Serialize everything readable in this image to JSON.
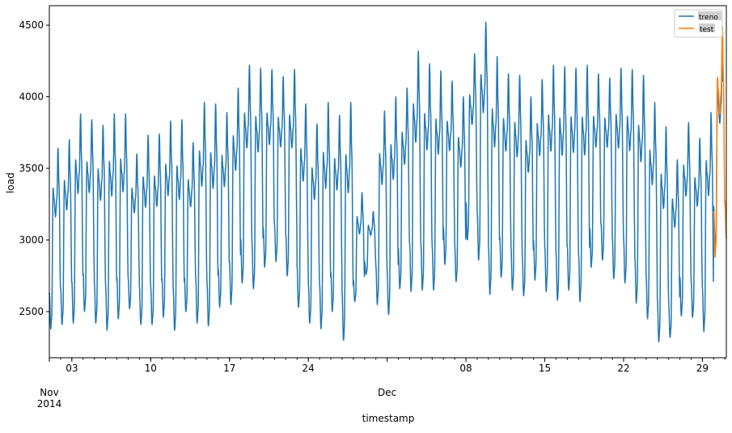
{
  "chart_data": {
    "type": "line",
    "xlabel": "timestamp",
    "ylabel": "load",
    "ylim": [
      2178,
      4636
    ],
    "xlim": [
      "2014-11-01 00:00",
      "2014-12-31 03:00"
    ],
    "grid": false,
    "legend_placement": "upper-right",
    "yticks": [
      2500,
      3000,
      3500,
      4000,
      4500
    ],
    "xticks_major": [
      {
        "date": "2014-11-01",
        "label": "Nov",
        "sublabel": "2014"
      },
      {
        "date": "2014-11-03",
        "label": "03"
      },
      {
        "date": "2014-11-10",
        "label": "10"
      },
      {
        "date": "2014-11-17",
        "label": "17"
      },
      {
        "date": "2014-11-24",
        "label": "24"
      },
      {
        "date": "2014-12-01",
        "label": "Dec"
      },
      {
        "date": "2014-12-08",
        "label": "08"
      },
      {
        "date": "2014-12-15",
        "label": "15"
      },
      {
        "date": "2014-12-22",
        "label": "22"
      },
      {
        "date": "2014-12-29",
        "label": "29"
      }
    ],
    "series": [
      {
        "name": "treno",
        "color": "#1f77b4",
        "start_date": "2014-11-01",
        "daily_max": [
          3640,
          3700,
          3880,
          3840,
          3800,
          3880,
          3880,
          3600,
          3730,
          3740,
          3830,
          3840,
          3680,
          3960,
          3950,
          3890,
          4060,
          4220,
          4200,
          4190,
          4140,
          4190,
          3950,
          3810,
          3960,
          3870,
          3960,
          3330,
          3200,
          3900,
          4000,
          4060,
          4320,
          4230,
          4180,
          4110,
          4000,
          4300,
          4520,
          4280,
          4160,
          4150,
          4000,
          4120,
          4220,
          4210,
          4200,
          4220,
          4160,
          4130,
          4200,
          4190,
          4150,
          3960,
          3790,
          3560,
          3820,
          3710,
          3890,
          4340
        ],
        "daily_min": [
          2380,
          2410,
          2420,
          2500,
          2420,
          2370,
          2450,
          2520,
          2410,
          2410,
          2460,
          2370,
          2500,
          2420,
          2400,
          2530,
          2550,
          2700,
          2660,
          2810,
          2850,
          2750,
          2530,
          2420,
          2380,
          2500,
          2300,
          2570,
          2760,
          2550,
          2480,
          2660,
          2640,
          2650,
          2650,
          2830,
          2710,
          3000,
          2860,
          2620,
          2740,
          2650,
          2610,
          2720,
          2640,
          2580,
          2650,
          2570,
          2810,
          2860,
          2730,
          2700,
          2560,
          2450,
          2290,
          2320,
          2470,
          2460,
          2360,
          2960
        ]
      },
      {
        "name": "test",
        "color": "#ff7f0e",
        "start_date": "2014-12-30",
        "daily_max": [
          4490,
          4320
        ],
        "daily_min": [
          2880,
          3010
        ]
      }
    ]
  }
}
